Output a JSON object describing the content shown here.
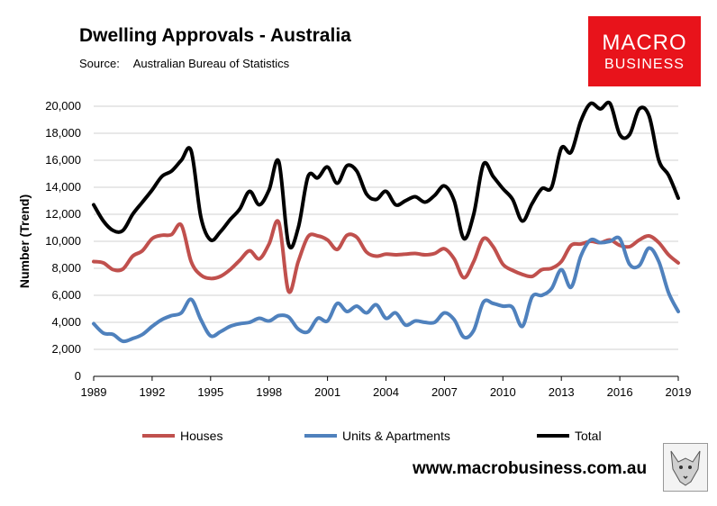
{
  "header": {
    "title": "Dwelling Approvals - Australia",
    "source_label": "Source:",
    "source_value": "Australian Bureau of Statistics"
  },
  "logo": {
    "line1": "MACRO",
    "line2": "BUSINESS",
    "color": "#e8131b"
  },
  "footer": {
    "url": "www.macrobusiness.com.au",
    "emblem": "wolf-emblem-icon"
  },
  "chart_data": {
    "type": "line",
    "ylabel": "Number (Trend)",
    "xlabel": "",
    "ylim": [
      0,
      20000
    ],
    "xlim": [
      1989,
      2019
    ],
    "yticks": [
      0,
      2000,
      4000,
      6000,
      8000,
      10000,
      12000,
      14000,
      16000,
      18000,
      20000
    ],
    "ytick_labels": [
      "0",
      "2,000",
      "4,000",
      "6,000",
      "8,000",
      "10,000",
      "12,000",
      "14,000",
      "16,000",
      "18,000",
      "20,000"
    ],
    "xticks": [
      1989,
      1992,
      1995,
      1998,
      2001,
      2004,
      2007,
      2010,
      2013,
      2016,
      2019
    ],
    "xtick_labels": [
      "1989",
      "1992",
      "1995",
      "1998",
      "2001",
      "2004",
      "2007",
      "2010",
      "2013",
      "2016",
      "2019"
    ],
    "grid": true,
    "legend_position": "bottom",
    "x": [
      1989,
      1989.5,
      1990,
      1990.5,
      1991,
      1991.5,
      1992,
      1992.5,
      1993,
      1993.5,
      1994,
      1994.5,
      1995,
      1995.5,
      1996,
      1996.5,
      1997,
      1997.5,
      1998,
      1998.5,
      1999,
      1999.5,
      2000,
      2000.5,
      2001,
      2001.5,
      2002,
      2002.5,
      2003,
      2003.5,
      2004,
      2004.5,
      2005,
      2005.5,
      2006,
      2006.5,
      2007,
      2007.5,
      2008,
      2008.5,
      2009,
      2009.5,
      2010,
      2010.5,
      2011,
      2011.5,
      2012,
      2012.5,
      2013,
      2013.5,
      2014,
      2014.5,
      2015,
      2015.5,
      2016,
      2016.5,
      2017,
      2017.5,
      2018,
      2018.5,
      2019
    ],
    "series": [
      {
        "name": "Houses",
        "color": "#c0504d",
        "values": [
          8500,
          8400,
          7900,
          7950,
          8900,
          9300,
          10200,
          10450,
          10500,
          11200,
          8500,
          7500,
          7250,
          7400,
          7900,
          8600,
          9300,
          8700,
          9800,
          11400,
          6300,
          8500,
          10350,
          10400,
          10100,
          9400,
          10450,
          10300,
          9200,
          8900,
          9050,
          9000,
          9050,
          9100,
          9000,
          9100,
          9450,
          8700,
          7300,
          8500,
          10200,
          9600,
          8300,
          7850,
          7550,
          7400,
          7900,
          8000,
          8500,
          9700,
          9800,
          10000,
          9900,
          10100,
          9700,
          9600,
          10100,
          10400,
          9900,
          9000,
          8400
        ]
      },
      {
        "name": "Units & Apartments",
        "color": "#4f81bd",
        "values": [
          3900,
          3200,
          3100,
          2600,
          2800,
          3100,
          3700,
          4200,
          4500,
          4700,
          5700,
          4200,
          3000,
          3300,
          3700,
          3900,
          4000,
          4300,
          4100,
          4500,
          4400,
          3500,
          3300,
          4300,
          4100,
          5400,
          4800,
          5200,
          4700,
          5300,
          4300,
          4700,
          3800,
          4100,
          4000,
          4000,
          4700,
          4200,
          2900,
          3400,
          5500,
          5400,
          5200,
          5100,
          3700,
          5900,
          6000,
          6500,
          7900,
          6600,
          8900,
          10100,
          9900,
          10000,
          10200,
          8300,
          8200,
          9500,
          8500,
          6200,
          4800
        ]
      },
      {
        "name": "Total",
        "color": "#000000",
        "values": [
          12700,
          11500,
          10800,
          10800,
          12000,
          12900,
          13800,
          14800,
          15200,
          16000,
          16700,
          11800,
          10100,
          10700,
          11600,
          12400,
          13700,
          12700,
          13800,
          15900,
          9800,
          11000,
          14800,
          14700,
          15500,
          14300,
          15600,
          15200,
          13500,
          13100,
          13700,
          12700,
          13000,
          13300,
          12900,
          13400,
          14100,
          13000,
          10200,
          12000,
          15700,
          14800,
          13900,
          13100,
          11500,
          12800,
          13900,
          14000,
          16900,
          16600,
          18900,
          20200,
          19800,
          20200,
          17900,
          17900,
          19800,
          19300,
          16000,
          14900,
          13200
        ]
      }
    ]
  }
}
